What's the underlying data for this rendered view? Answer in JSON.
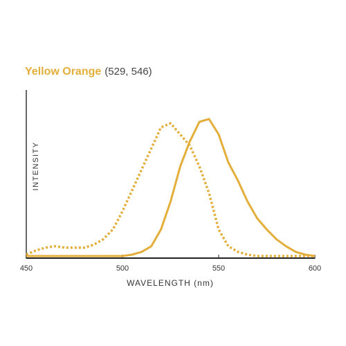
{
  "chart_data": {
    "type": "line",
    "title": "Yellow Orange",
    "subtitle": "(529, 546)",
    "x_label": "WAVELENGTH (nm)",
    "y_label": "INTENSITY",
    "x": [
      450,
      455,
      460,
      465,
      470,
      475,
      480,
      485,
      490,
      495,
      500,
      505,
      510,
      515,
      520,
      525,
      530,
      535,
      540,
      545,
      550,
      555,
      560,
      565,
      570,
      575,
      580,
      585,
      590,
      595,
      600
    ],
    "series": [
      {
        "color": "#e3ae3a",
        "line_style": "dotted",
        "values": [
          0.02,
          0.05,
          0.07,
          0.08,
          0.07,
          0.07,
          0.07,
          0.09,
          0.13,
          0.2,
          0.33,
          0.48,
          0.63,
          0.78,
          0.93,
          0.96,
          0.88,
          0.8,
          0.65,
          0.46,
          0.2,
          0.08,
          0.04,
          0.02,
          0.01,
          0.01,
          0.01,
          0.01,
          0.01,
          0.01,
          0.01
        ]
      },
      {
        "color": "#e3ae3a",
        "line_style": "solid",
        "values": [
          0.01,
          0.01,
          0.01,
          0.01,
          0.01,
          0.01,
          0.01,
          0.01,
          0.01,
          0.01,
          0.01,
          0.02,
          0.04,
          0.08,
          0.2,
          0.4,
          0.65,
          0.83,
          0.97,
          0.99,
          0.88,
          0.68,
          0.55,
          0.4,
          0.28,
          0.2,
          0.13,
          0.08,
          0.04,
          0.02,
          0.01
        ]
      }
    ],
    "xlim": [
      450,
      600
    ],
    "xticks": [
      450,
      500,
      550,
      600
    ],
    "ylim": [
      0,
      1
    ]
  }
}
